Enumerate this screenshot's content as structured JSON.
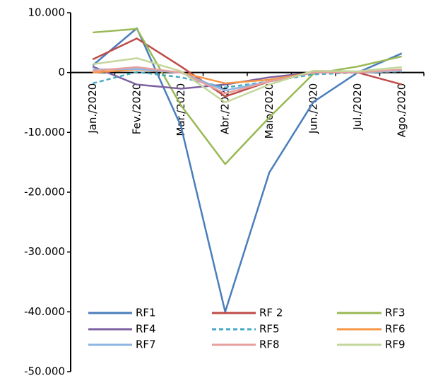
{
  "chart_data": {
    "type": "line",
    "categories": [
      "Jan./2020",
      "Fev./2020",
      "Mar./2020",
      "Abr./2020",
      "Maio/2020",
      "Jun./2020",
      "Jul./2020",
      "Ago./2020"
    ],
    "ylim": [
      -50000,
      10000
    ],
    "yticks": [
      {
        "value": 10000,
        "label": "10.000"
      },
      0,
      {
        "value": -10000,
        "label": "-10.000"
      },
      {
        "value": -20000,
        "label": "-20.000"
      },
      {
        "value": -30000,
        "label": "-30.000"
      },
      {
        "value": -40000,
        "label": "-40.000"
      },
      {
        "value": -50000,
        "label": "-50.000"
      }
    ],
    "series": [
      {
        "name": "RF1",
        "color": "#4a7ebb",
        "values": [
          1200,
          7400,
          -9000,
          -40000,
          -16700,
          -4900,
          0,
          3200
        ]
      },
      {
        "name": "RF 2",
        "color": "#be4b48",
        "values": [
          2200,
          5700,
          1000,
          -4000,
          -1500,
          0,
          0,
          -2000
        ]
      },
      {
        "name": "RF3",
        "color": "#98b954",
        "values": [
          6700,
          7300,
          -5500,
          -15300,
          -7500,
          -200,
          1000,
          2700
        ]
      },
      {
        "name": "RF4",
        "color": "#7d60a0",
        "values": [
          1000,
          -2000,
          -2700,
          -2000,
          -800,
          0,
          0,
          300
        ]
      },
      {
        "name": "RF5",
        "color": "#46aac5",
        "dashed": true,
        "values": [
          -1800,
          100,
          -800,
          -2500,
          -1500,
          -300,
          0,
          200
        ]
      },
      {
        "name": "RF6",
        "color": "#f79646",
        "values": [
          0,
          500,
          0,
          -1800,
          -1200,
          0,
          0,
          300
        ]
      },
      {
        "name": "RF7",
        "color": "#8eb4e3",
        "values": [
          500,
          600,
          0,
          -3000,
          -1500,
          0,
          0,
          300
        ]
      },
      {
        "name": "RF8",
        "color": "#e6a09e",
        "values": [
          300,
          900,
          0,
          -3500,
          -1500,
          0,
          0,
          500
        ]
      },
      {
        "name": "RF9",
        "color": "#c3d69b",
        "values": [
          1400,
          2400,
          200,
          -5000,
          -2000,
          300,
          200,
          900
        ]
      }
    ]
  }
}
